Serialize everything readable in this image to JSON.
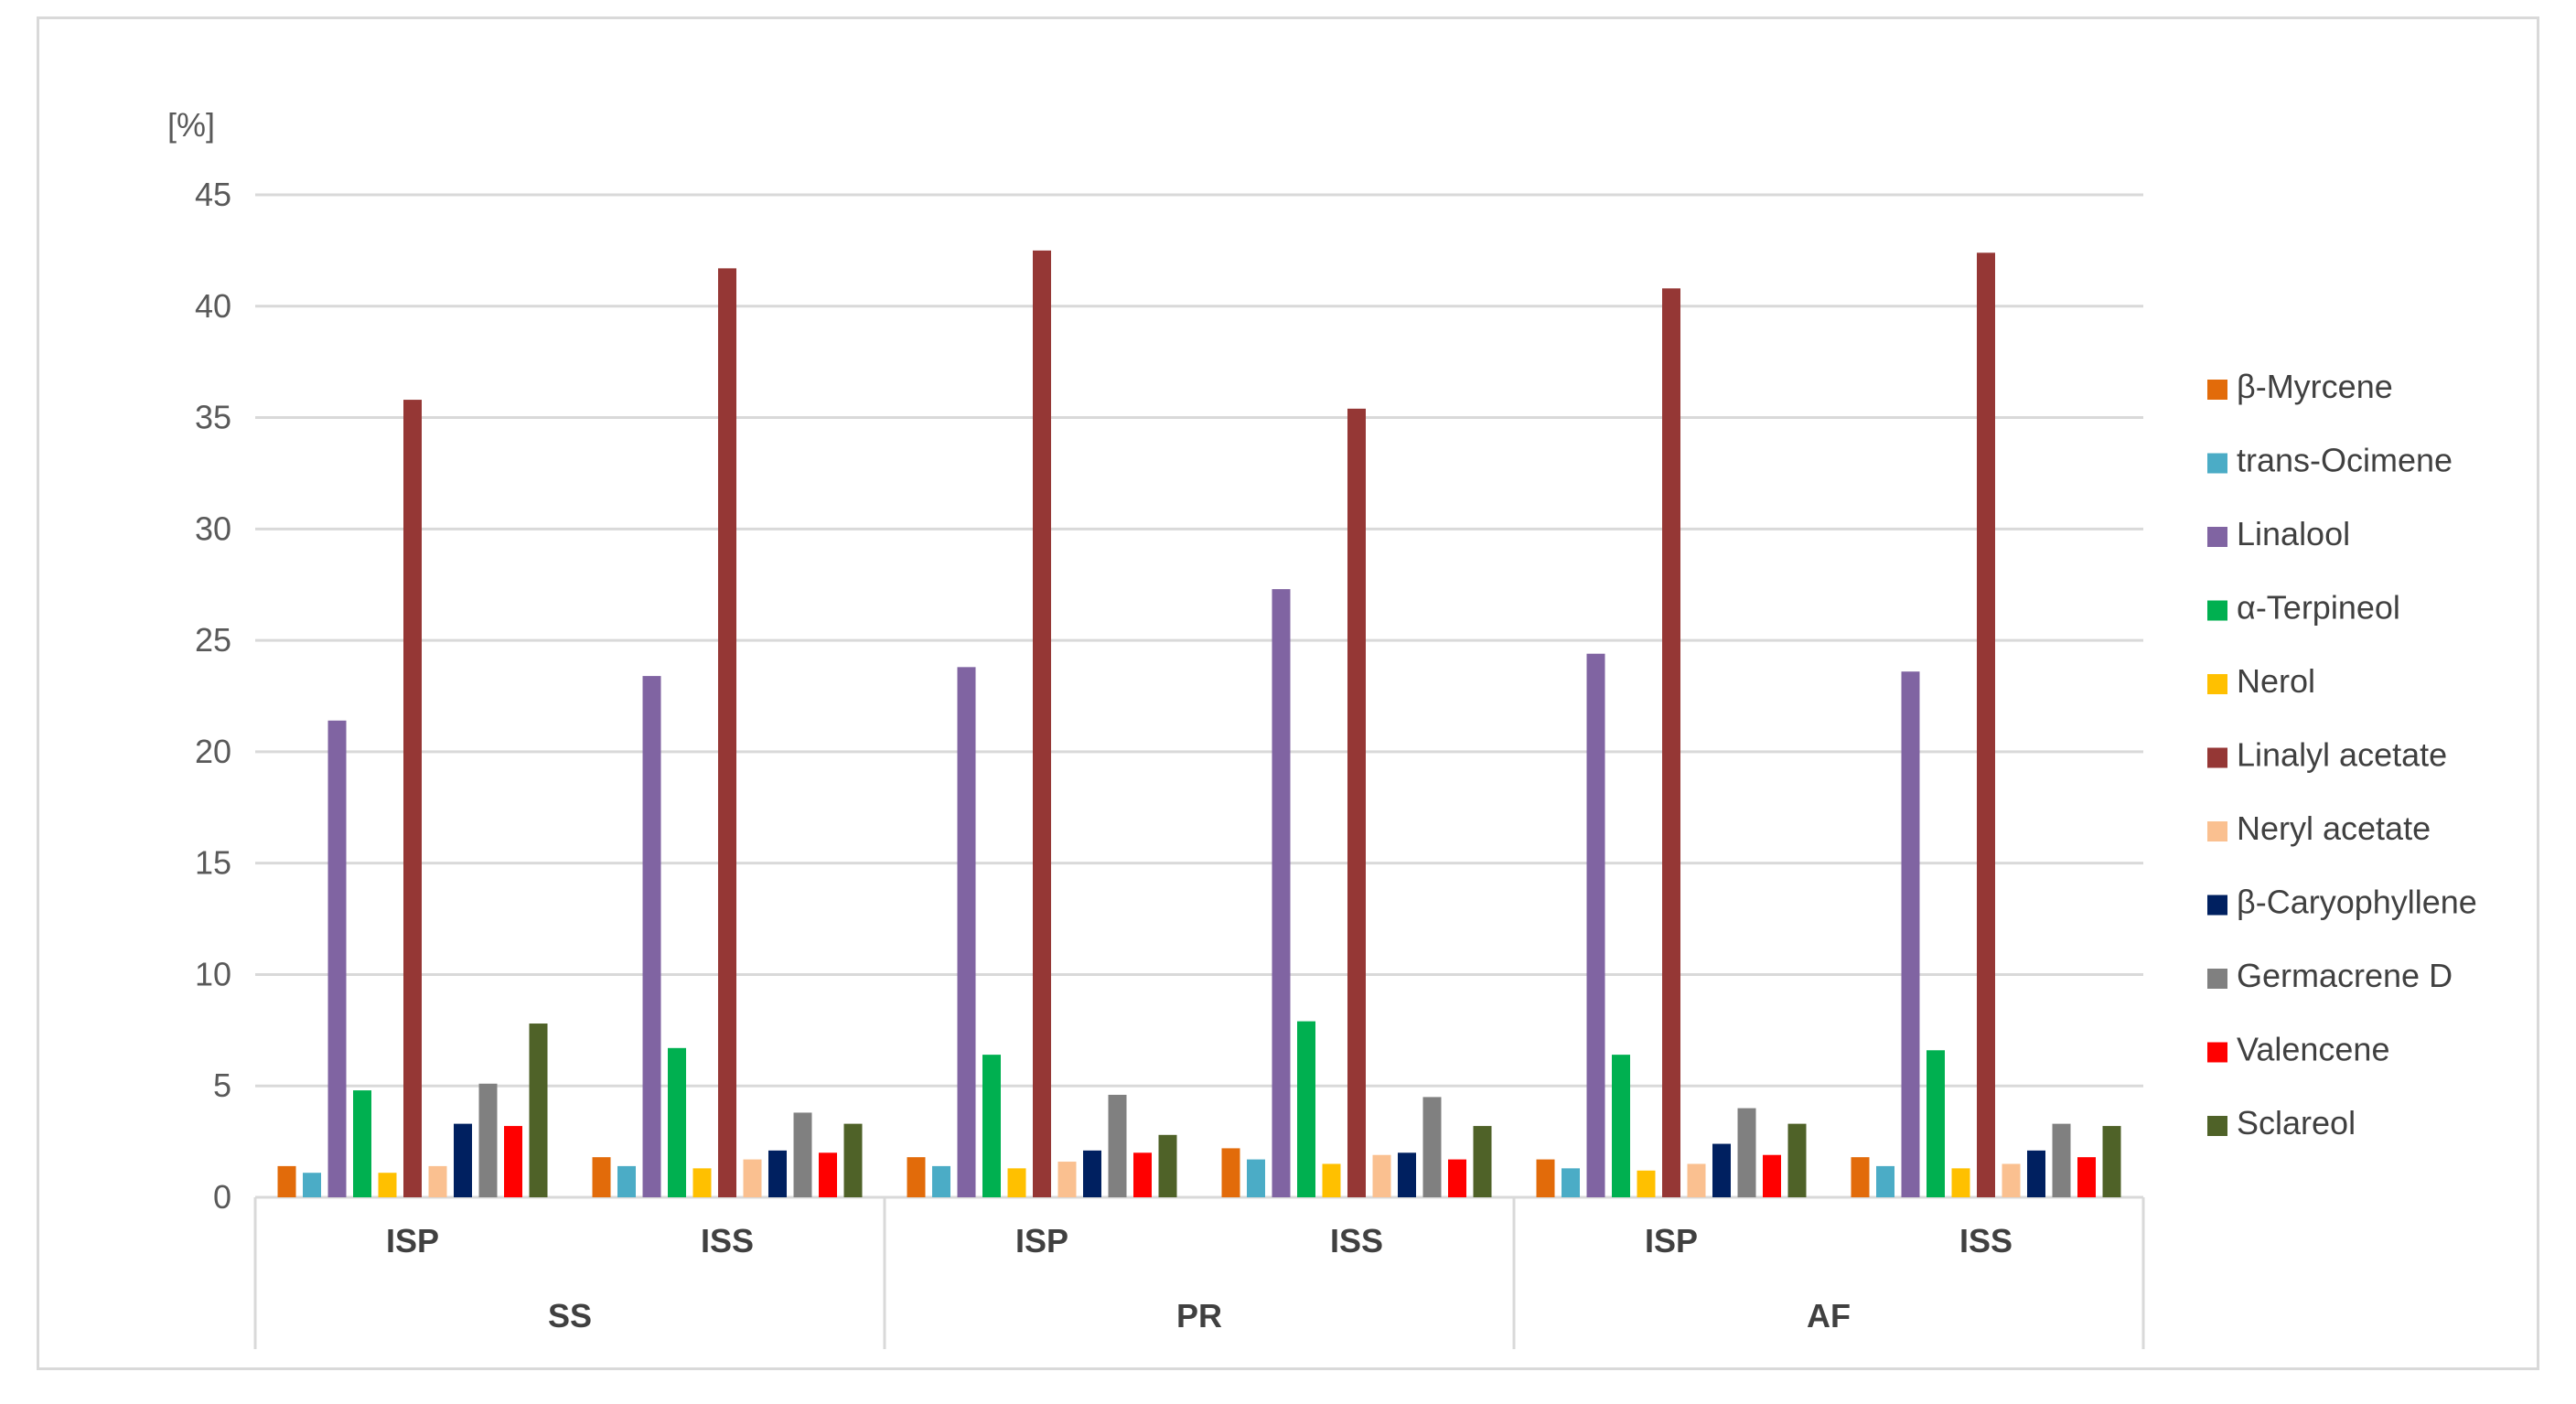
{
  "chart_data": {
    "type": "bar",
    "ylabel": "[%]",
    "ylim": [
      0,
      45
    ],
    "yticks": [
      0,
      5,
      10,
      15,
      20,
      25,
      30,
      35,
      40,
      45
    ],
    "grid": true,
    "legend_position": "right",
    "groups": [
      {
        "label": "SS",
        "categories": [
          "ISP",
          "ISS"
        ]
      },
      {
        "label": "PR",
        "categories": [
          "ISP",
          "ISS"
        ]
      },
      {
        "label": "AF",
        "categories": [
          "ISP",
          "ISS"
        ]
      }
    ],
    "series": [
      {
        "name": "β-Myrcene",
        "color": "#e26b0a",
        "values": [
          1.4,
          1.8,
          1.8,
          2.2,
          1.7,
          1.8
        ]
      },
      {
        "name": "trans-Ocimene",
        "color": "#4bacc6",
        "values": [
          1.1,
          1.4,
          1.4,
          1.7,
          1.3,
          1.4
        ]
      },
      {
        "name": "Linalool",
        "color": "#8064a2",
        "values": [
          21.4,
          23.4,
          23.8,
          27.3,
          24.4,
          23.6
        ]
      },
      {
        "name": "α-Terpineol",
        "color": "#00b050",
        "values": [
          4.8,
          6.7,
          6.4,
          7.9,
          6.4,
          6.6
        ]
      },
      {
        "name": "Nerol",
        "color": "#ffc000",
        "values": [
          1.1,
          1.3,
          1.3,
          1.5,
          1.2,
          1.3
        ]
      },
      {
        "name": "Linalyl acetate",
        "color": "#953735",
        "values": [
          35.8,
          41.7,
          42.5,
          35.4,
          40.8,
          42.4
        ]
      },
      {
        "name": "Neryl acetate",
        "color": "#fac090",
        "values": [
          1.4,
          1.7,
          1.6,
          1.9,
          1.5,
          1.5
        ]
      },
      {
        "name": "β-Caryophyllene",
        "color": "#002060",
        "values": [
          3.3,
          2.1,
          2.1,
          2.0,
          2.4,
          2.1
        ]
      },
      {
        "name": "Germacrene D",
        "color": "#808080",
        "values": [
          5.1,
          3.8,
          4.6,
          4.5,
          4.0,
          3.3
        ]
      },
      {
        "name": "Valencene",
        "color": "#ff0000",
        "values": [
          3.2,
          2.0,
          2.0,
          1.7,
          1.9,
          1.8
        ]
      },
      {
        "name": "Sclareol",
        "color": "#4f6228",
        "values": [
          7.8,
          3.3,
          2.8,
          3.2,
          3.3,
          3.2
        ]
      }
    ]
  }
}
